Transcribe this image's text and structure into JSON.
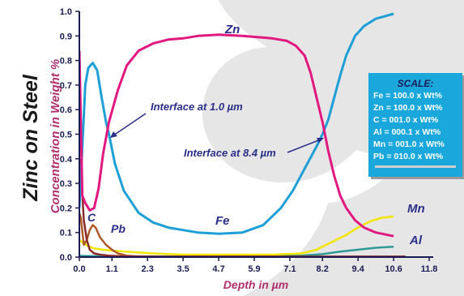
{
  "chart_data": {
    "type": "line",
    "title": "Zinc on Steel",
    "xlabel": "Depth in µm",
    "ylabel": "Concentration in Weight %",
    "xlim": [
      0.0,
      11.8
    ],
    "ylim": [
      0.0,
      1.0
    ],
    "x_ticks": [
      "0.0",
      "1.1",
      "2.3",
      "3.5",
      "4.7",
      "5.9",
      "7.1",
      "8.2",
      "9.4",
      "10.6",
      "11.8"
    ],
    "y_ticks": [
      "0.0",
      "0.1",
      "0.2",
      "0.3",
      "0.4",
      "0.5",
      "0.6",
      "0.7",
      "0.8",
      "0.9",
      "1.0"
    ],
    "grid": false,
    "series": [
      {
        "name": "Zn",
        "color": "#e0187f",
        "x": [
          0.0,
          0.05,
          0.1,
          0.2,
          0.35,
          0.5,
          0.65,
          0.8,
          1.0,
          1.3,
          1.6,
          2.0,
          2.5,
          3.0,
          3.5,
          4.0,
          4.7,
          5.5,
          6.5,
          7.0,
          7.3,
          7.6,
          7.8,
          8.0,
          8.2,
          8.4,
          8.6,
          8.8,
          9.0,
          9.3,
          9.6,
          10.0,
          10.4,
          10.6
        ],
        "y": [
          0.84,
          0.55,
          0.25,
          0.22,
          0.19,
          0.2,
          0.28,
          0.42,
          0.55,
          0.68,
          0.78,
          0.84,
          0.87,
          0.885,
          0.89,
          0.9,
          0.905,
          0.9,
          0.89,
          0.88,
          0.86,
          0.82,
          0.75,
          0.65,
          0.55,
          0.43,
          0.33,
          0.25,
          0.2,
          0.15,
          0.12,
          0.1,
          0.09,
          0.085
        ]
      },
      {
        "name": "Fe",
        "color": "#1e9fd6",
        "x": [
          0.0,
          0.1,
          0.2,
          0.3,
          0.45,
          0.6,
          0.75,
          0.9,
          1.0,
          1.2,
          1.5,
          2.0,
          2.5,
          3.0,
          3.5,
          4.0,
          4.7,
          5.5,
          6.2,
          6.8,
          7.2,
          7.6,
          8.0,
          8.2,
          8.4,
          8.6,
          8.8,
          9.0,
          9.3,
          9.6,
          10.0,
          10.3,
          10.6
        ],
        "y": [
          0.2,
          0.45,
          0.7,
          0.77,
          0.79,
          0.76,
          0.65,
          0.55,
          0.5,
          0.38,
          0.27,
          0.18,
          0.14,
          0.12,
          0.11,
          0.1,
          0.095,
          0.1,
          0.13,
          0.2,
          0.27,
          0.36,
          0.45,
          0.5,
          0.56,
          0.65,
          0.74,
          0.82,
          0.9,
          0.94,
          0.97,
          0.98,
          0.99
        ]
      },
      {
        "name": "C",
        "color": "#8a2a2a",
        "x": [
          0.0,
          0.05,
          0.1,
          0.15,
          0.25,
          0.35,
          0.5,
          0.7,
          1.0,
          1.5,
          2.0,
          11.0
        ],
        "y": [
          0.4,
          0.34,
          0.25,
          0.15,
          0.07,
          0.03,
          0.015,
          0.01,
          0.006,
          0.003,
          0.002,
          0.002
        ]
      },
      {
        "name": "Pb",
        "color": "#b05a2a",
        "x": [
          0.0,
          0.05,
          0.15,
          0.25,
          0.35,
          0.45,
          0.55,
          0.7,
          0.9,
          1.1,
          1.3,
          1.6,
          2.0,
          3.0,
          11.0
        ],
        "y": [
          0.18,
          0.16,
          0.05,
          0.07,
          0.11,
          0.13,
          0.12,
          0.08,
          0.05,
          0.03,
          0.015,
          0.006,
          0.002,
          0.001,
          0.001
        ]
      },
      {
        "name": "Mn",
        "color": "#f2e600",
        "x": [
          0.0,
          0.1,
          0.3,
          0.5,
          0.8,
          1.2,
          1.8,
          2.5,
          3.5,
          5.0,
          6.5,
          7.5,
          8.0,
          8.5,
          9.0,
          9.4,
          9.8,
          10.2,
          10.6
        ],
        "y": [
          0.07,
          0.06,
          0.045,
          0.035,
          0.03,
          0.025,
          0.02,
          0.015,
          0.01,
          0.01,
          0.01,
          0.015,
          0.03,
          0.06,
          0.09,
          0.12,
          0.145,
          0.16,
          0.165
        ]
      },
      {
        "name": "Al",
        "color": "#2e9a96",
        "x": [
          0.0,
          1.0,
          2.0,
          4.0,
          6.0,
          7.5,
          8.2,
          8.8,
          9.4,
          10.0,
          10.6
        ],
        "y": [
          0.005,
          0.003,
          0.003,
          0.003,
          0.004,
          0.006,
          0.012,
          0.022,
          0.03,
          0.038,
          0.042
        ]
      }
    ],
    "annotations": [
      {
        "text": "Interface at 1.0 µm",
        "x": 1.0,
        "y": 0.5
      },
      {
        "text": "Interface at 8.4 µm",
        "x": 8.4,
        "y": 0.5
      }
    ],
    "series_labels": [
      "Zn",
      "Fe",
      "C",
      "Pb",
      "Mn",
      "Al"
    ],
    "scale_legend": {
      "title": "SCALE:",
      "rows": [
        "Fe = 100.0 x Wt%",
        "Zn = 100.0 x Wt%",
        "C   = 001.0 x Wt%",
        "Al  = 000.1 x Wt%",
        "Mn = 001.0 x Wt%",
        "Pb = 010.0 x Wt%"
      ]
    },
    "colors": {
      "axis": "#1a1a55",
      "label": "#b0306e",
      "annotation": "#2b2e86",
      "legend_bg": "#1aa7dc",
      "watermark": "#e6e6e6"
    }
  }
}
